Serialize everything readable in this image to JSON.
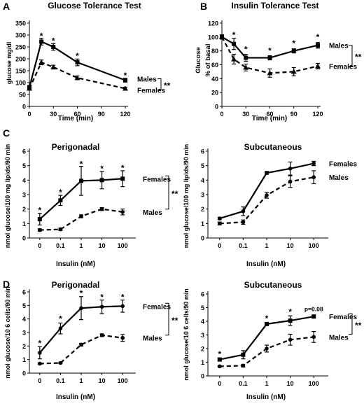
{
  "chart_data": [
    {
      "panel": "A",
      "type": "line",
      "title": "Glucose Tolerance Test",
      "xlabel": "Time (min)",
      "ylabel": "glucose mg/dl",
      "x": [
        0,
        15,
        30,
        60,
        120
      ],
      "xticks": [
        "0",
        "30",
        "60",
        "90",
        "120"
      ],
      "xlim": [
        0,
        120
      ],
      "ylim": [
        0,
        350
      ],
      "yticks": [
        "0",
        "50",
        "100",
        "150",
        "200",
        "250",
        "300",
        "350"
      ],
      "series": [
        {
          "name": "Males",
          "style": "solid",
          "marker": "square",
          "values": [
            80,
            272,
            250,
            185,
            110
          ],
          "err": [
            8,
            14,
            14,
            14,
            8
          ]
        },
        {
          "name": "Females",
          "style": "dashed",
          "marker": "triangle",
          "values": [
            75,
            185,
            165,
            120,
            75
          ],
          "err": [
            6,
            10,
            8,
            8,
            6
          ]
        }
      ],
      "stars": [
        [
          15,
          295
        ],
        [
          30,
          275
        ],
        [
          60,
          212
        ],
        [
          120,
          130
        ]
      ],
      "sig": "**"
    },
    {
      "panel": "B",
      "type": "line",
      "title": "Insulin Tolerance Test",
      "xlabel": "Time (min)",
      "ylabel": "Glucose\n% of basal",
      "x": [
        0,
        15,
        30,
        60,
        90,
        120
      ],
      "xticks": [
        "0",
        "30",
        "60",
        "90",
        "120"
      ],
      "xlim": [
        0,
        120
      ],
      "ylim": [
        0,
        120
      ],
      "yticks": [
        "0",
        "20",
        "40",
        "60",
        "80",
        "100",
        "120"
      ],
      "series": [
        {
          "name": "Males",
          "style": "solid",
          "marker": "square",
          "values": [
            100,
            90,
            70,
            70,
            80,
            88
          ],
          "err": [
            3,
            8,
            5,
            3,
            3,
            4
          ]
        },
        {
          "name": "Females",
          "style": "dashed",
          "marker": "triangle",
          "values": [
            100,
            68,
            56,
            48,
            50,
            58
          ],
          "err": [
            3,
            7,
            5,
            6,
            6,
            4
          ]
        }
      ],
      "stars": [
        [
          15,
          103
        ],
        [
          30,
          82
        ],
        [
          60,
          80
        ],
        [
          90,
          91
        ],
        [
          120,
          100
        ]
      ],
      "sig": "**"
    },
    {
      "panel": "C",
      "type": "line",
      "title": "Perigonadal",
      "xlabel": "Insulin (nM)",
      "ylabel": "nmol glucose/100 mg lipids/90 min",
      "categories": [
        "0",
        "0.1",
        "1",
        "10",
        "100"
      ],
      "ylim": [
        0,
        6
      ],
      "yticks": [
        "0",
        "1",
        "2",
        "3",
        "4",
        "5",
        "6"
      ],
      "series": [
        {
          "name": "Females",
          "style": "solid",
          "marker": "square",
          "values": [
            1.3,
            2.6,
            3.95,
            4.0,
            4.1
          ],
          "err": [
            0.4,
            0.35,
            1.0,
            0.6,
            0.55
          ]
        },
        {
          "name": "Males",
          "style": "dashed",
          "marker": "circle",
          "values": [
            0.55,
            0.6,
            1.5,
            2.0,
            1.8
          ],
          "err": [
            0.08,
            0.08,
            0.1,
            0.1,
            0.2
          ]
        }
      ],
      "stars": [
        [
          0,
          1.9
        ],
        [
          1,
          3.15
        ],
        [
          2,
          5.1
        ],
        [
          3,
          4.8
        ],
        [
          4,
          4.85
        ]
      ],
      "sig": "**"
    },
    {
      "panel": "",
      "type": "line",
      "title": "Subcutaneous",
      "xlabel": "Insulin (nM)",
      "ylabel": "nmol glucose/100 mg lipids/90 min",
      "categories": [
        "0",
        "0.1",
        "1",
        "10",
        "100"
      ],
      "ylim": [
        0,
        6
      ],
      "yticks": [
        "0",
        "1",
        "2",
        "3",
        "4",
        "5",
        "6"
      ],
      "series": [
        {
          "name": "Females",
          "style": "solid",
          "marker": "circle",
          "values": [
            1.35,
            1.85,
            4.5,
            4.8,
            5.15
          ],
          "err": [
            0.08,
            0.3,
            0.1,
            0.45,
            0.15
          ]
        },
        {
          "name": "Males",
          "style": "dashed",
          "marker": "circle",
          "values": [
            1.0,
            1.1,
            2.95,
            3.9,
            4.2
          ],
          "err": [
            0.1,
            0.15,
            0.2,
            0.4,
            0.45
          ]
        }
      ],
      "stars": [],
      "sig": ""
    },
    {
      "panel": "D",
      "type": "line",
      "title": "Perigonadal",
      "xlabel": "Insulin (nM)",
      "ylabel": "nmol glucose/10 6 cells/90 min",
      "categories": [
        "0",
        "0.1",
        "1",
        "10",
        "100"
      ],
      "ylim": [
        0,
        6
      ],
      "yticks": [
        "0",
        "1",
        "2",
        "3",
        "4",
        "5",
        "6"
      ],
      "series": [
        {
          "name": "Females",
          "style": "solid",
          "marker": "circle",
          "values": [
            1.5,
            3.3,
            4.8,
            4.9,
            4.95
          ],
          "err": [
            0.45,
            0.4,
            0.85,
            0.5,
            0.45
          ]
        },
        {
          "name": "Males",
          "style": "dashed",
          "marker": "circle",
          "values": [
            0.7,
            0.75,
            2.1,
            2.8,
            2.6
          ],
          "err": [
            0.05,
            0.05,
            0.1,
            0.1,
            0.25
          ]
        }
      ],
      "stars": [
        [
          0,
          2.2
        ],
        [
          1,
          4.0
        ],
        [
          2,
          5.9
        ],
        [
          3,
          5.6
        ],
        [
          4,
          5.6
        ]
      ],
      "sig": "**"
    },
    {
      "panel": "",
      "type": "line",
      "title": "Subcutaneous",
      "xlabel": "Insulin (nM)",
      "ylabel": "nmol glucose/10 6 cells/90 min",
      "categories": [
        "0",
        "0.1",
        "1",
        "10",
        "100"
      ],
      "ylim": [
        0,
        6
      ],
      "yticks": [
        "0",
        "1",
        "2",
        "3",
        "4",
        "5",
        "6"
      ],
      "series": [
        {
          "name": "Females",
          "style": "solid",
          "marker": "square",
          "values": [
            1.2,
            1.55,
            3.8,
            4.05,
            4.35
          ],
          "err": [
            0.1,
            0.3,
            0.1,
            0.35,
            0.1
          ]
        },
        {
          "name": "Males",
          "style": "dashed",
          "marker": "circle",
          "values": [
            0.7,
            0.75,
            2.0,
            2.65,
            2.85
          ],
          "err": [
            0.05,
            0.1,
            0.25,
            0.4,
            0.4
          ]
        }
      ],
      "stars": [
        [
          0,
          1.6
        ],
        [
          2,
          4.2
        ],
        [
          3,
          4.7
        ]
      ],
      "annotation": {
        "text": "p=0.08",
        "x": 4,
        "y": 4.75
      },
      "sig": "**"
    }
  ]
}
